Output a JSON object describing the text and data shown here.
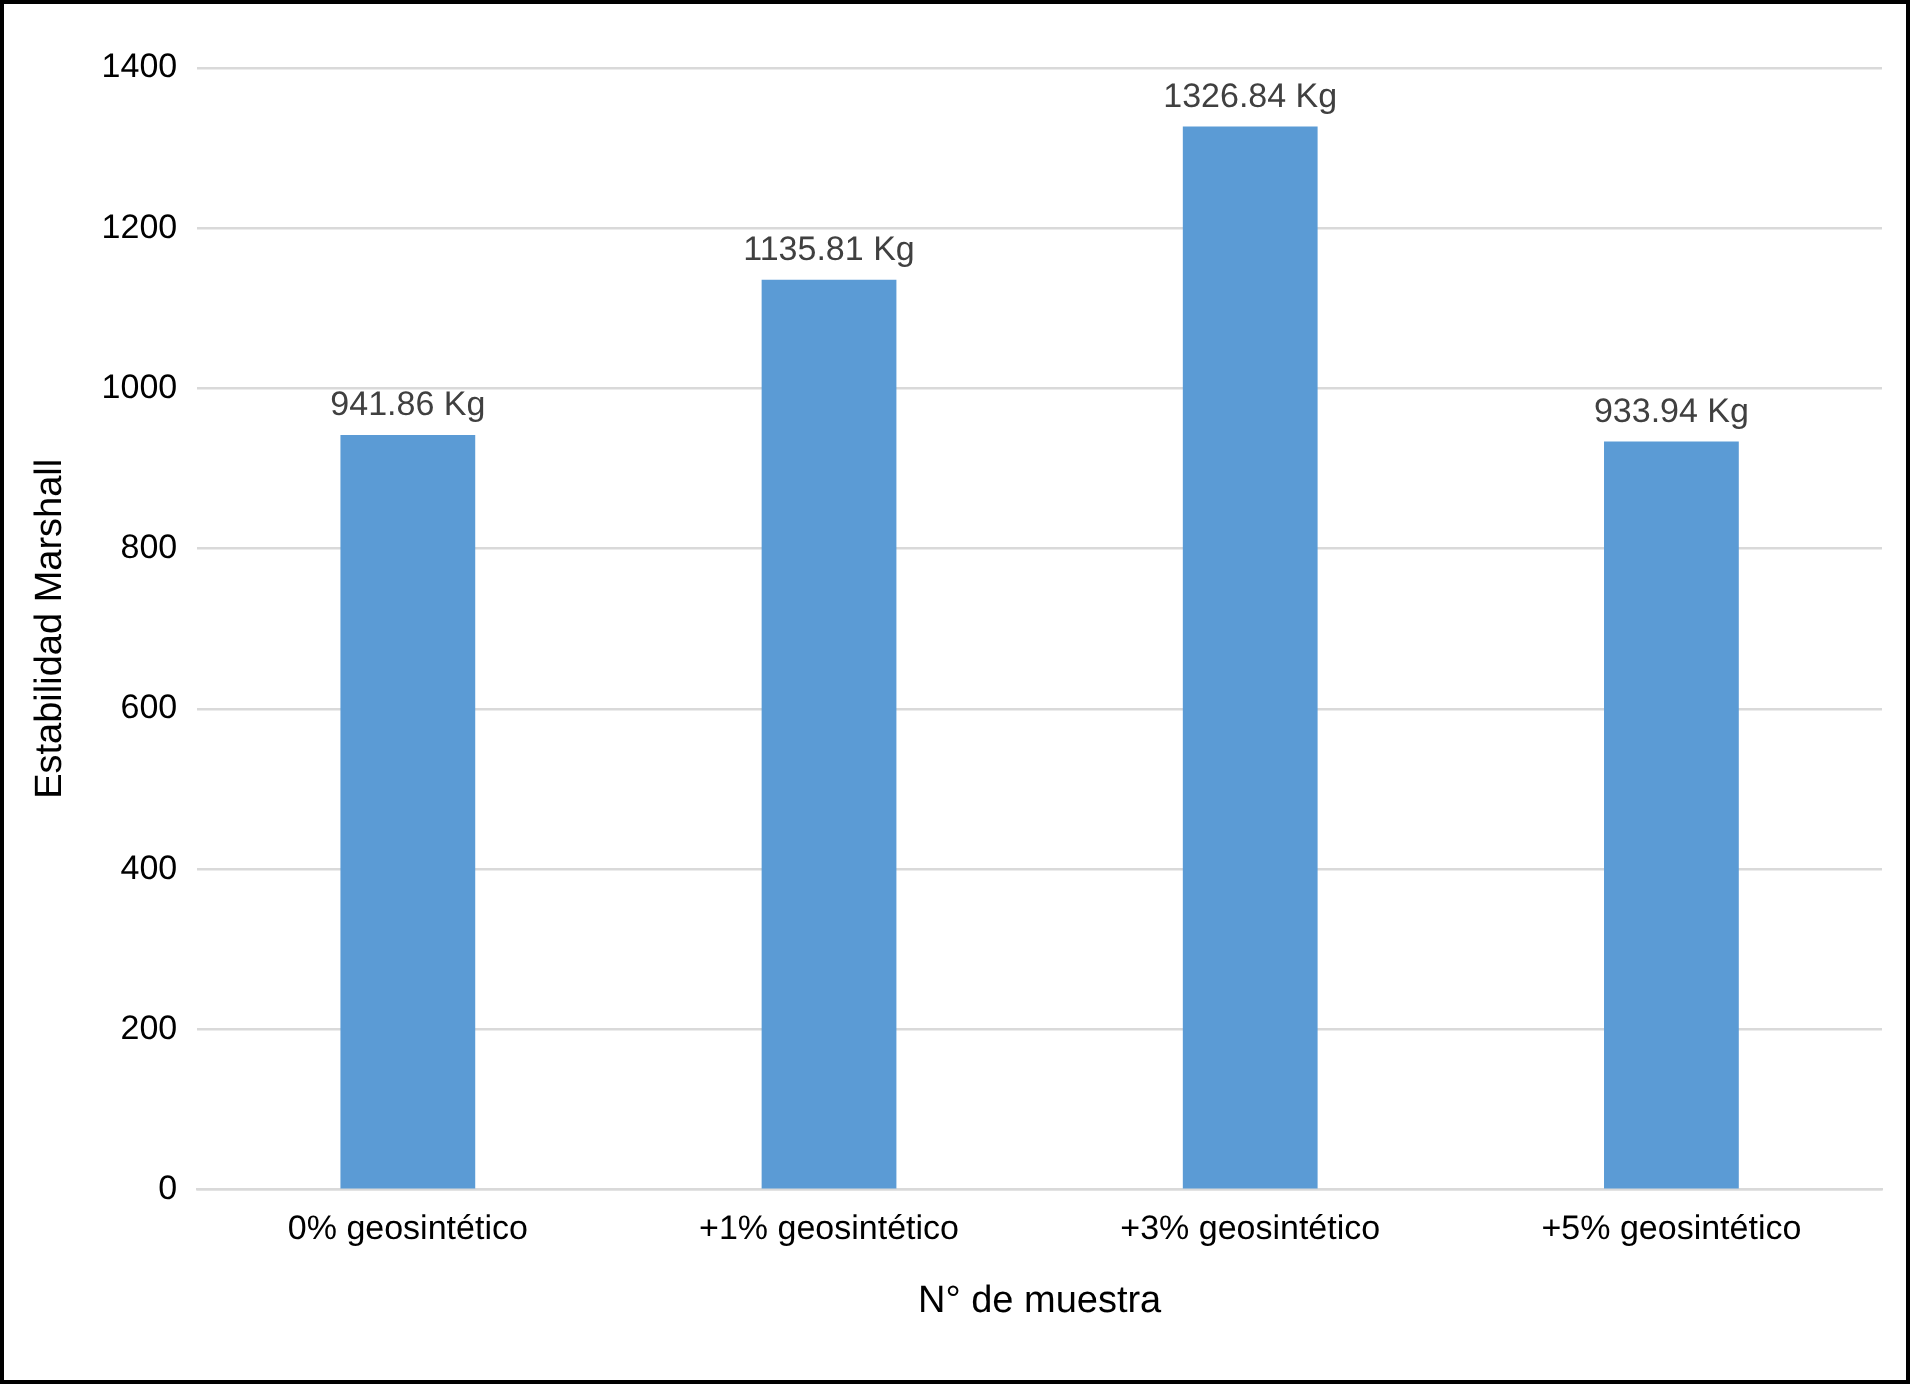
{
  "chart_data": {
    "type": "bar",
    "xlabel": "N° de muestra",
    "ylabel": "Estabilidad Marshall",
    "categories": [
      "0% geosintético",
      "+1% geosintético",
      "+3% geosintético",
      "+5% geosintético"
    ],
    "values": [
      941.86,
      1135.81,
      1326.84,
      933.94
    ],
    "color": "#5b9bd5",
    "value_labels": [
      "941.86 Kg",
      "1135.81 Kg",
      "1326.84 Kg",
      "933.94 Kg"
    ],
    "ylim": [
      0,
      1400
    ],
    "yticks": [
      0,
      200,
      400,
      600,
      800,
      1000,
      1200,
      1400
    ],
    "grid": "y",
    "legend": false
  }
}
